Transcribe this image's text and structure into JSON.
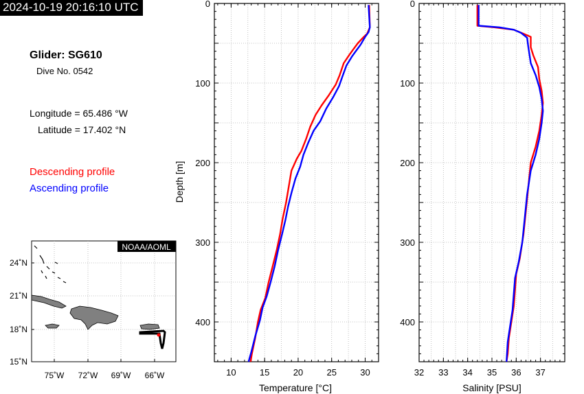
{
  "header": {
    "timestamp": "2024-10-19 20:16:10 UTC",
    "glider": "Glider: SG610",
    "dive": "Dive No. 0542",
    "longitude": "Longitude = 65.486 °W",
    "latitude": "Latitude = 17.402 °N"
  },
  "legend": {
    "descending": "Descending profile",
    "ascending": "Ascending profile",
    "descending_color": "#ff0000",
    "ascending_color": "#0000ff"
  },
  "map": {
    "credit": "NOAA/AOML",
    "lat_labels": [
      "24˚N",
      "21˚N",
      "18˚N",
      "15˚N"
    ],
    "lon_labels": [
      "75˚W",
      "72˚W",
      "69˚W",
      "66˚W"
    ],
    "land_color": "#808080",
    "track_color": "#000000"
  },
  "chart_data": [
    {
      "type": "line",
      "xlabel": "Temperature [°C]",
      "ylabel": "Depth [m]",
      "xlim": [
        7.5,
        32
      ],
      "ylim": [
        450,
        0
      ],
      "x_ticks": [
        10,
        15,
        20,
        25,
        30
      ],
      "y_ticks": [
        0,
        100,
        200,
        300,
        400
      ],
      "grid": true,
      "series": [
        {
          "name": "Descending profile",
          "color": "#ff0000",
          "points": [
            [
              30.6,
              2
            ],
            [
              30.7,
              30
            ],
            [
              30.3,
              38
            ],
            [
              29.8,
              42
            ],
            [
              28.9,
              50
            ],
            [
              28.2,
              58
            ],
            [
              27.6,
              65
            ],
            [
              26.8,
              75
            ],
            [
              26.2,
              90
            ],
            [
              25.6,
              102
            ],
            [
              24.6,
              115
            ],
            [
              23.5,
              128
            ],
            [
              22.6,
              140
            ],
            [
              21.8,
              155
            ],
            [
              21.2,
              170
            ],
            [
              20.5,
              185
            ],
            [
              19.8,
              195
            ],
            [
              19.0,
              210
            ],
            [
              18.6,
              230
            ],
            [
              18.2,
              250
            ],
            [
              17.7,
              270
            ],
            [
              17.3,
              290
            ],
            [
              16.8,
              310
            ],
            [
              16.2,
              330
            ],
            [
              15.6,
              350
            ],
            [
              15.1,
              370
            ],
            [
              14.4,
              385
            ],
            [
              14.0,
              400
            ],
            [
              13.6,
              420
            ],
            [
              13.1,
              440
            ],
            [
              12.9,
              450
            ]
          ]
        },
        {
          "name": "Ascending profile",
          "color": "#0000ff",
          "points": [
            [
              30.5,
              2
            ],
            [
              30.7,
              30
            ],
            [
              30.5,
              36
            ],
            [
              30.0,
              42
            ],
            [
              29.3,
              52
            ],
            [
              28.6,
              60
            ],
            [
              28.0,
              67
            ],
            [
              27.2,
              78
            ],
            [
              26.6,
              92
            ],
            [
              26.1,
              104
            ],
            [
              25.2,
              118
            ],
            [
              24.2,
              132
            ],
            [
              23.3,
              148
            ],
            [
              22.3,
              160
            ],
            [
              21.5,
              175
            ],
            [
              20.8,
              190
            ],
            [
              20.3,
              205
            ],
            [
              19.6,
              220
            ],
            [
              19.0,
              238
            ],
            [
              18.5,
              255
            ],
            [
              18.1,
              272
            ],
            [
              17.6,
              290
            ],
            [
              17.0,
              310
            ],
            [
              16.5,
              330
            ],
            [
              15.9,
              350
            ],
            [
              15.3,
              368
            ],
            [
              14.7,
              382
            ],
            [
              14.3,
              398
            ],
            [
              13.6,
              418
            ],
            [
              13.0,
              438
            ],
            [
              12.6,
              450
            ]
          ]
        }
      ]
    },
    {
      "type": "line",
      "xlabel": "Salinity [PSU]",
      "ylabel": "",
      "xlim": [
        32,
        38
      ],
      "ylim": [
        450,
        0
      ],
      "x_ticks": [
        32,
        33,
        34,
        35,
        36,
        37
      ],
      "y_ticks": [
        0,
        100,
        200,
        300,
        400
      ],
      "grid": true,
      "series": [
        {
          "name": "Descending profile",
          "color": "#ff0000",
          "points": [
            [
              34.4,
              2
            ],
            [
              34.4,
              28
            ],
            [
              35.1,
              30
            ],
            [
              35.9,
              33
            ],
            [
              36.3,
              38
            ],
            [
              36.6,
              42
            ],
            [
              36.6,
              55
            ],
            [
              36.7,
              65
            ],
            [
              36.9,
              80
            ],
            [
              36.95,
              95
            ],
            [
              37.05,
              110
            ],
            [
              37.1,
              125
            ],
            [
              37.05,
              140
            ],
            [
              36.95,
              160
            ],
            [
              36.8,
              180
            ],
            [
              36.6,
              200
            ],
            [
              36.5,
              230
            ],
            [
              36.4,
              260
            ],
            [
              36.3,
              290
            ],
            [
              36.15,
              320
            ],
            [
              36.0,
              340
            ],
            [
              35.95,
              360
            ],
            [
              35.9,
              380
            ],
            [
              35.8,
              400
            ],
            [
              35.7,
              420
            ],
            [
              35.65,
              440
            ],
            [
              35.6,
              450
            ]
          ]
        },
        {
          "name": "Ascending profile",
          "color": "#0000ff",
          "points": [
            [
              34.45,
              2
            ],
            [
              34.45,
              28
            ],
            [
              35.3,
              30
            ],
            [
              35.9,
              33
            ],
            [
              36.2,
              37
            ],
            [
              36.45,
              43
            ],
            [
              36.5,
              55
            ],
            [
              36.55,
              65
            ],
            [
              36.6,
              75
            ],
            [
              36.8,
              90
            ],
            [
              36.95,
              105
            ],
            [
              37.05,
              120
            ],
            [
              37.1,
              135
            ],
            [
              37.05,
              150
            ],
            [
              36.95,
              170
            ],
            [
              36.8,
              190
            ],
            [
              36.6,
              210
            ],
            [
              36.45,
              240
            ],
            [
              36.35,
              270
            ],
            [
              36.25,
              300
            ],
            [
              36.1,
              325
            ],
            [
              35.95,
              345
            ],
            [
              35.9,
              365
            ],
            [
              35.85,
              385
            ],
            [
              35.75,
              405
            ],
            [
              35.65,
              425
            ],
            [
              35.6,
              450
            ]
          ]
        }
      ]
    }
  ]
}
